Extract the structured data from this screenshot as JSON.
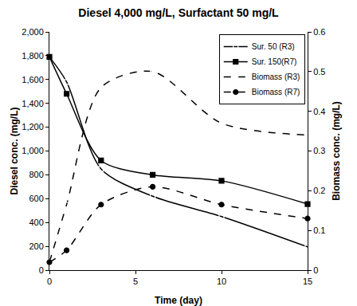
{
  "chart_data": {
    "type": "line",
    "title": "Diesel 4,000 mg/L, Surfactant 50 mg/L",
    "x_label": "Time (day)",
    "y_label": "Diesel conc. (mg/L)",
    "y2_label": "Biomass conc. (mg/L)",
    "x": [
      0,
      1,
      3,
      6,
      10,
      15
    ],
    "xlim": [
      0,
      15
    ],
    "xticks": [
      0,
      5,
      10,
      15
    ],
    "ylim": [
      0,
      2000
    ],
    "yticks": [
      0,
      200,
      400,
      600,
      800,
      {
        "value": 1000,
        "label": "1,000"
      },
      {
        "value": 1200,
        "label": "1,200"
      },
      {
        "value": 1400,
        "label": "1,400"
      },
      {
        "value": 1600,
        "label": "1,600"
      },
      {
        "value": 1800,
        "label": "1,800"
      },
      {
        "value": 2000,
        "label": "2,000"
      }
    ],
    "y2lim": [
      0,
      0.6
    ],
    "y2ticks": [
      0,
      0.1,
      0.2,
      0.3,
      0.4,
      0.5,
      0.6
    ],
    "grid": false,
    "legend": "upper right",
    "series": [
      {
        "name": "Sur. 50 (R3)",
        "color": "#000000",
        "marker": "square-open",
        "line_style": "solid",
        "values": [
          1790,
          1580,
          850,
          620,
          450,
          195
        ]
      },
      {
        "name": "Sur. 150(R7)",
        "color": "#000000",
        "marker": "square",
        "line_style": "solid",
        "values": [
          1790,
          1480,
          920,
          800,
          750,
          555
        ]
      },
      {
        "name": "Biomass (R3)",
        "color": "#000000",
        "marker": "circle-open",
        "line_style": "dashed",
        "axis": "y2",
        "values": [
          0.02,
          0.165,
          0.46,
          0.5,
          0.37,
          0.34
        ]
      },
      {
        "name": "Biomass (R7)",
        "color": "#000000",
        "marker": "circle",
        "line_style": "dashed",
        "axis": "y2",
        "values": [
          0.02,
          0.05,
          0.165,
          0.21,
          0.165,
          0.13
        ]
      }
    ]
  }
}
